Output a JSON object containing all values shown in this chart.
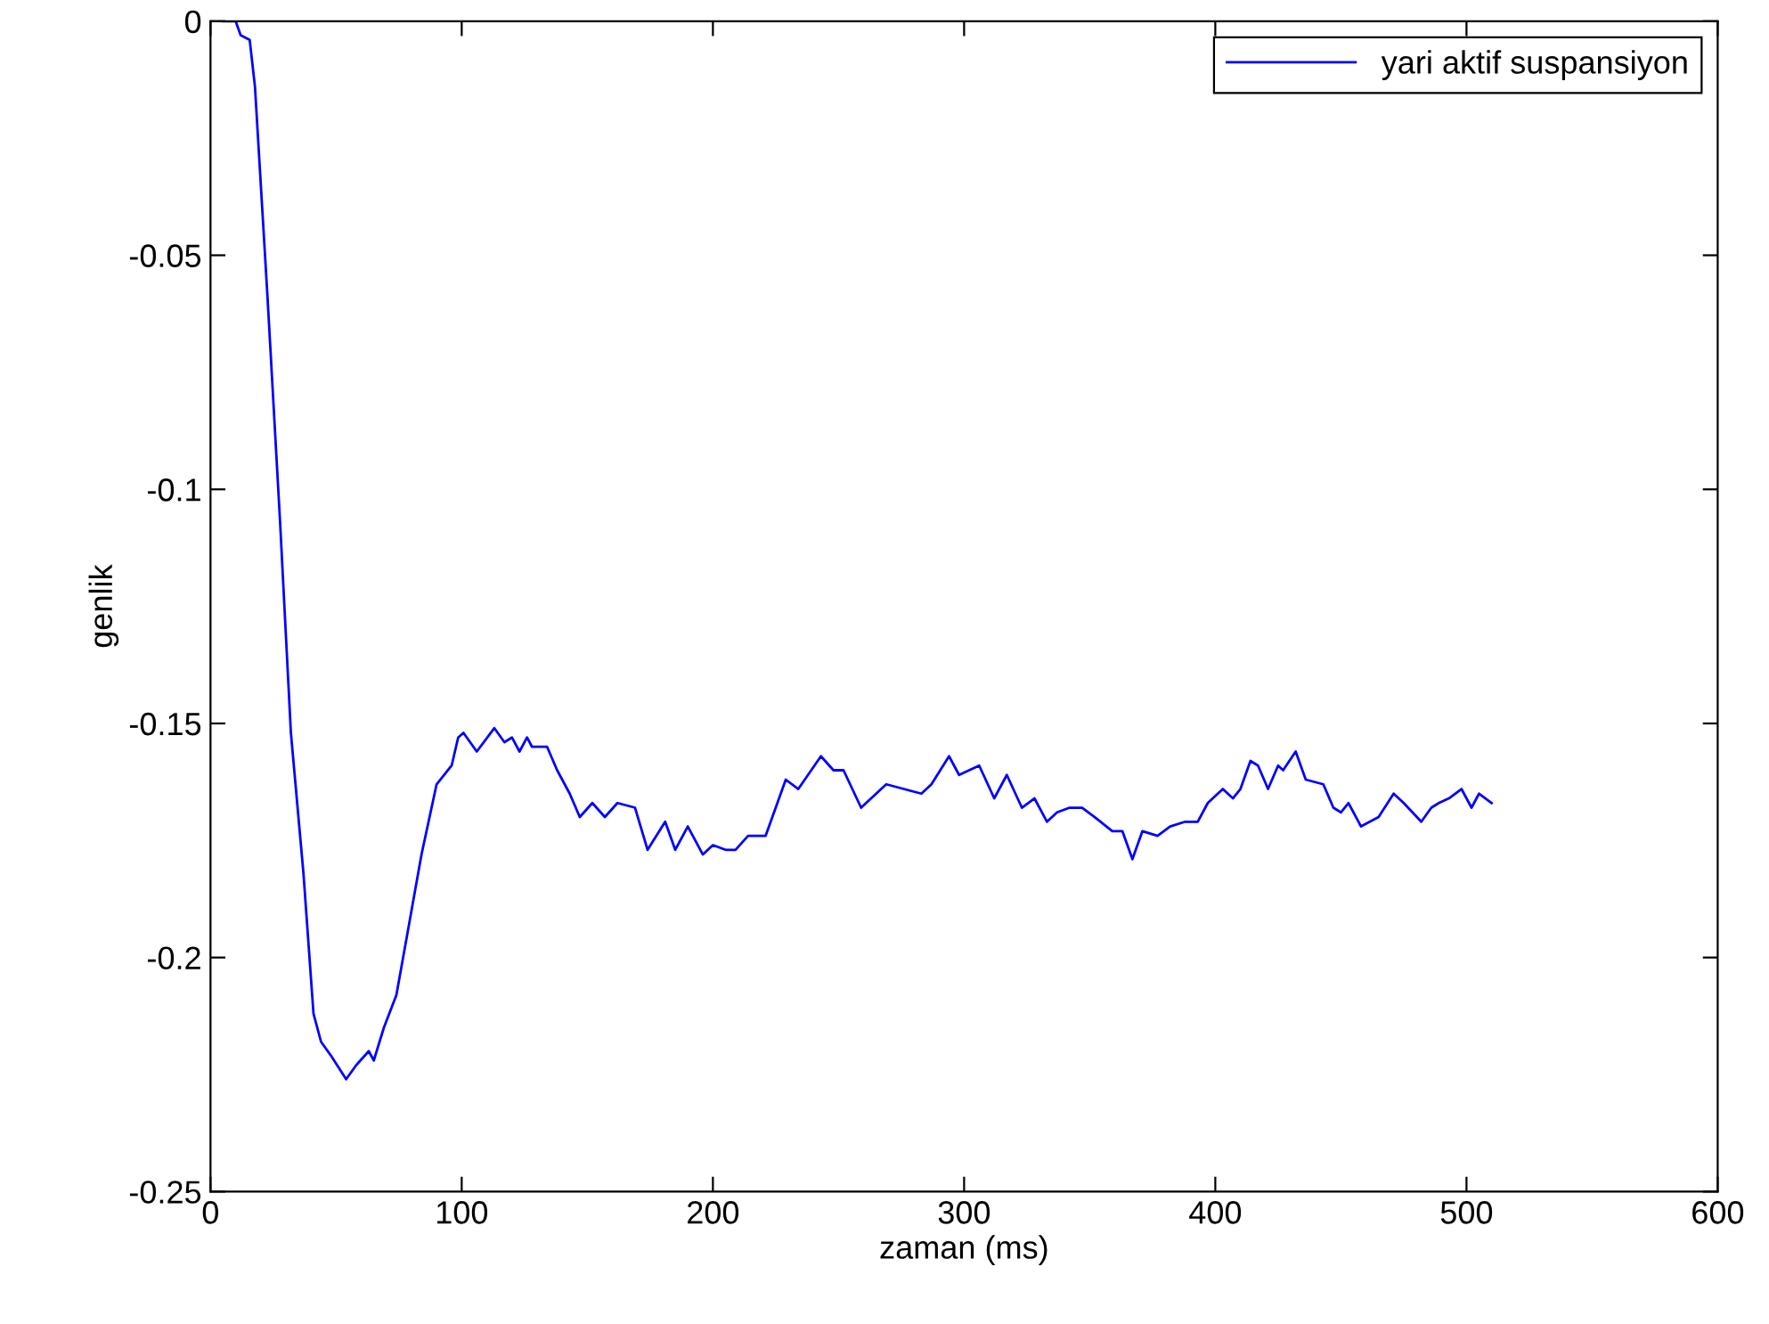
{
  "chart_data": {
    "type": "line",
    "xlabel": "zaman (ms)",
    "ylabel": "genlik",
    "xlim": [
      0,
      600
    ],
    "ylim": [
      -0.25,
      0
    ],
    "xticks": [
      0,
      100,
      200,
      300,
      400,
      500,
      600
    ],
    "yticks": [
      -0.25,
      -0.2,
      -0.15,
      -0.1,
      -0.05,
      0
    ],
    "grid": false,
    "legend": "top right",
    "marker": "none",
    "line_style": "solid",
    "series": [
      {
        "name": "yari aktif suspansiyon",
        "color": "#0000ff",
        "x": [
          5,
          10,
          12,
          15.6,
          17.7,
          22.7,
          27.7,
          32,
          37,
          41,
          44,
          48,
          54,
          58,
          63,
          65,
          69,
          74,
          79,
          84,
          90,
          96,
          98.6,
          100.7,
          106,
          113,
          117,
          120,
          123,
          126,
          128,
          134,
          138,
          143,
          147,
          152,
          157,
          162,
          169,
          174,
          181,
          185,
          190,
          196,
          200,
          205,
          209,
          214,
          221,
          229,
          234,
          243,
          248,
          252,
          259,
          263,
          269,
          276,
          283,
          287,
          294,
          298,
          306,
          312,
          317,
          323,
          328,
          333,
          337,
          342,
          347,
          352,
          359,
          363,
          367,
          371,
          377,
          382,
          388,
          393,
          397,
          403,
          407,
          410,
          414,
          417,
          421,
          425,
          427,
          432,
          436,
          443,
          447,
          450,
          453,
          458,
          465,
          471,
          475,
          482,
          486,
          489,
          493,
          498,
          502,
          505,
          510
        ],
        "values": [
          0,
          0,
          -0.003,
          -0.004,
          -0.014,
          -0.059,
          -0.107,
          -0.152,
          -0.182,
          -0.212,
          -0.218,
          -0.221,
          -0.226,
          -0.223,
          -0.22,
          -0.222,
          -0.215,
          -0.208,
          -0.193,
          -0.178,
          -0.163,
          -0.159,
          -0.153,
          -0.152,
          -0.156,
          -0.151,
          -0.154,
          -0.153,
          -0.156,
          -0.153,
          -0.155,
          -0.155,
          -0.16,
          -0.165,
          -0.17,
          -0.167,
          -0.17,
          -0.167,
          -0.168,
          -0.177,
          -0.171,
          -0.177,
          -0.172,
          -0.178,
          -0.176,
          -0.177,
          -0.177,
          -0.174,
          -0.174,
          -0.162,
          -0.164,
          -0.157,
          -0.16,
          -0.16,
          -0.168,
          -0.166,
          -0.163,
          -0.164,
          -0.165,
          -0.163,
          -0.157,
          -0.161,
          -0.159,
          -0.166,
          -0.161,
          -0.168,
          -0.166,
          -0.171,
          -0.169,
          -0.168,
          -0.168,
          -0.17,
          -0.173,
          -0.173,
          -0.179,
          -0.173,
          -0.174,
          -0.172,
          -0.171,
          -0.171,
          -0.167,
          -0.164,
          -0.166,
          -0.164,
          -0.158,
          -0.159,
          -0.164,
          -0.159,
          -0.16,
          -0.156,
          -0.162,
          -0.163,
          -0.168,
          -0.169,
          -0.167,
          -0.172,
          -0.17,
          -0.165,
          -0.167,
          -0.171,
          -0.168,
          -0.167,
          -0.166,
          -0.164,
          -0.168,
          -0.165,
          -0.167
        ]
      }
    ]
  }
}
